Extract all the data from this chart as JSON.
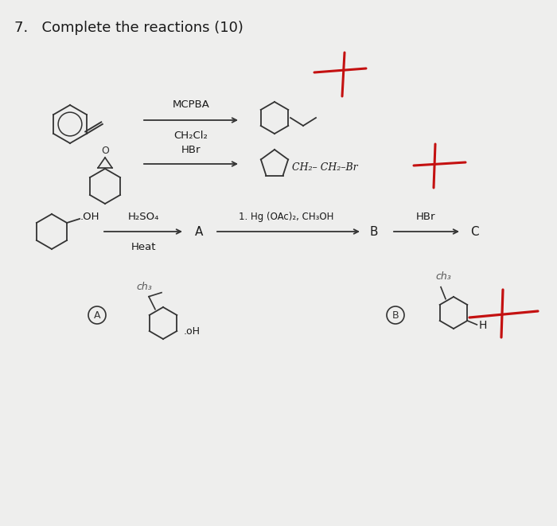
{
  "title": "7.   Complete the reactions (10)",
  "bg_color": "#f0efee",
  "title_fontsize": 13,
  "reagent1a": "MCPBA",
  "reagent1b": "CH₂Cl₂",
  "reagent2": "HBr",
  "reagent3a": "H₂SO₄",
  "reagent3b": "Heat",
  "reagent4": "1. Hg (OAc)₂, CH₃OH",
  "reagent5": "HBr",
  "label_A": "A",
  "label_B": "B",
  "label_C": "C",
  "ch2ch2br": "CH₂– CH₂–Br",
  "ch3_lc": "ch₃",
  "oh_lc": "oH",
  "H_label": "H"
}
